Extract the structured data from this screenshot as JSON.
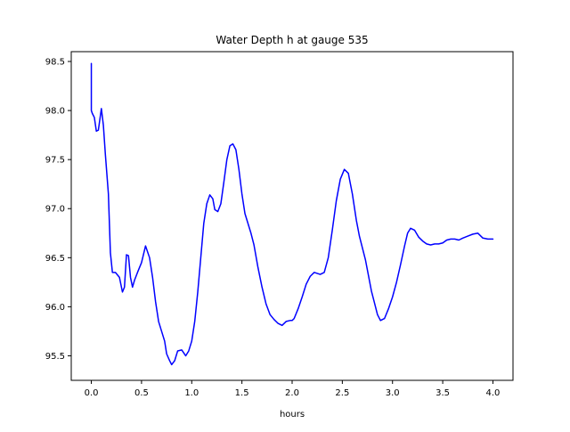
{
  "chart_data": {
    "type": "line",
    "title": "Water Depth h at gauge 535",
    "xlabel": "hours",
    "ylabel": "",
    "xlim": [
      -0.2,
      4.2
    ],
    "ylim": [
      95.25,
      98.6
    ],
    "xticks": [
      0.0,
      0.5,
      1.0,
      1.5,
      2.0,
      2.5,
      3.0,
      3.5,
      4.0
    ],
    "xtick_labels": [
      "0.0",
      "0.5",
      "1.0",
      "1.5",
      "2.0",
      "2.5",
      "3.0",
      "3.5",
      "4.0"
    ],
    "yticks": [
      95.5,
      96.0,
      96.5,
      97.0,
      97.5,
      98.0,
      98.5
    ],
    "ytick_labels": [
      "95.5",
      "96.0",
      "96.5",
      "97.0",
      "97.5",
      "98.0",
      "98.5"
    ],
    "grid": false,
    "series": [
      {
        "name": "",
        "color": "#0000ff",
        "x": [
          0.0,
          0.0,
          0.01,
          0.03,
          0.05,
          0.07,
          0.1,
          0.12,
          0.14,
          0.17,
          0.19,
          0.21,
          0.24,
          0.28,
          0.31,
          0.33,
          0.35,
          0.37,
          0.39,
          0.41,
          0.43,
          0.46,
          0.5,
          0.54,
          0.58,
          0.61,
          0.64,
          0.67,
          0.7,
          0.73,
          0.75,
          0.78,
          0.8,
          0.83,
          0.86,
          0.9,
          0.94,
          0.97,
          1.0,
          1.03,
          1.06,
          1.09,
          1.12,
          1.15,
          1.18,
          1.21,
          1.23,
          1.26,
          1.29,
          1.32,
          1.35,
          1.38,
          1.41,
          1.44,
          1.47,
          1.5,
          1.53,
          1.56,
          1.59,
          1.62,
          1.66,
          1.7,
          1.74,
          1.78,
          1.82,
          1.86,
          1.9,
          1.94,
          1.98,
          2.0,
          2.02,
          2.06,
          2.1,
          2.14,
          2.18,
          2.22,
          2.25,
          2.28,
          2.32,
          2.36,
          2.4,
          2.44,
          2.48,
          2.52,
          2.56,
          2.6,
          2.64,
          2.67,
          2.7,
          2.73,
          2.76,
          2.79,
          2.82,
          2.85,
          2.88,
          2.92,
          2.96,
          3.0,
          3.04,
          3.08,
          3.12,
          3.15,
          3.18,
          3.22,
          3.26,
          3.3,
          3.34,
          3.38,
          3.42,
          3.46,
          3.5,
          3.54,
          3.58,
          3.62,
          3.66,
          3.7,
          3.75,
          3.8,
          3.85,
          3.9,
          3.95,
          4.0
        ],
        "y": [
          98.48,
          98.0,
          97.97,
          97.93,
          97.79,
          97.8,
          98.02,
          97.85,
          97.55,
          97.15,
          96.55,
          96.35,
          96.35,
          96.3,
          96.15,
          96.2,
          96.53,
          96.52,
          96.3,
          96.2,
          96.27,
          96.35,
          96.45,
          96.62,
          96.5,
          96.3,
          96.05,
          95.85,
          95.75,
          95.65,
          95.52,
          95.45,
          95.41,
          95.45,
          95.55,
          95.56,
          95.5,
          95.55,
          95.65,
          95.85,
          96.15,
          96.5,
          96.85,
          97.05,
          97.14,
          97.1,
          96.99,
          96.97,
          97.05,
          97.27,
          97.5,
          97.64,
          97.66,
          97.6,
          97.4,
          97.15,
          96.95,
          96.85,
          96.75,
          96.63,
          96.4,
          96.2,
          96.03,
          95.92,
          95.87,
          95.83,
          95.81,
          95.85,
          95.86,
          95.86,
          95.88,
          95.98,
          96.1,
          96.23,
          96.31,
          96.35,
          96.34,
          96.33,
          96.35,
          96.5,
          96.78,
          97.08,
          97.3,
          97.4,
          97.36,
          97.15,
          96.88,
          96.72,
          96.6,
          96.48,
          96.32,
          96.16,
          96.04,
          95.92,
          95.86,
          95.88,
          95.98,
          96.1,
          96.25,
          96.43,
          96.62,
          96.75,
          96.8,
          96.78,
          96.71,
          96.67,
          96.64,
          96.63,
          96.64,
          96.64,
          96.65,
          96.68,
          96.69,
          96.69,
          96.68,
          96.7,
          96.72,
          96.74,
          96.75,
          96.7,
          96.69,
          96.69
        ]
      }
    ]
  }
}
